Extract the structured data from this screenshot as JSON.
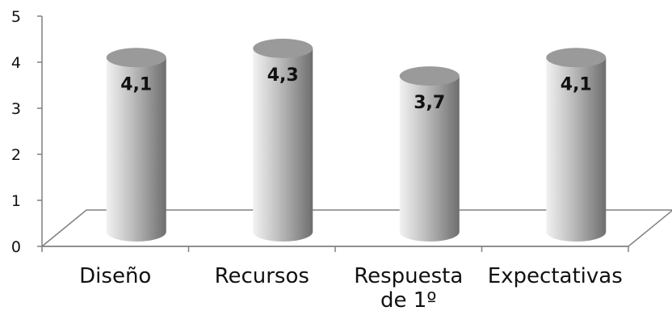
{
  "chart_data": {
    "type": "bar",
    "style": "3d-cylinder",
    "categories": [
      "Diseño",
      "Recursos",
      "Respuesta de 1º",
      "Expectativas"
    ],
    "category_label_lines": [
      [
        "Diseño"
      ],
      [
        "Recursos"
      ],
      [
        "Respuesta",
        "de 1º"
      ],
      [
        "Expectativas"
      ]
    ],
    "values": [
      4.1,
      4.3,
      3.7,
      4.1
    ],
    "value_labels": [
      "4,1",
      "4,3",
      "3,7",
      "4,1"
    ],
    "ylim": [
      0,
      5
    ],
    "yticks": [
      "0",
      "1",
      "2",
      "3",
      "4",
      "5"
    ],
    "grid": false,
    "legend": "none",
    "colors": {
      "bar_light": "#f2f2f2",
      "bar_mid": "#bfbfbf",
      "bar_dark": "#6e6e6e",
      "bar_top": "#9a9a9a",
      "axis": "#808080"
    }
  }
}
